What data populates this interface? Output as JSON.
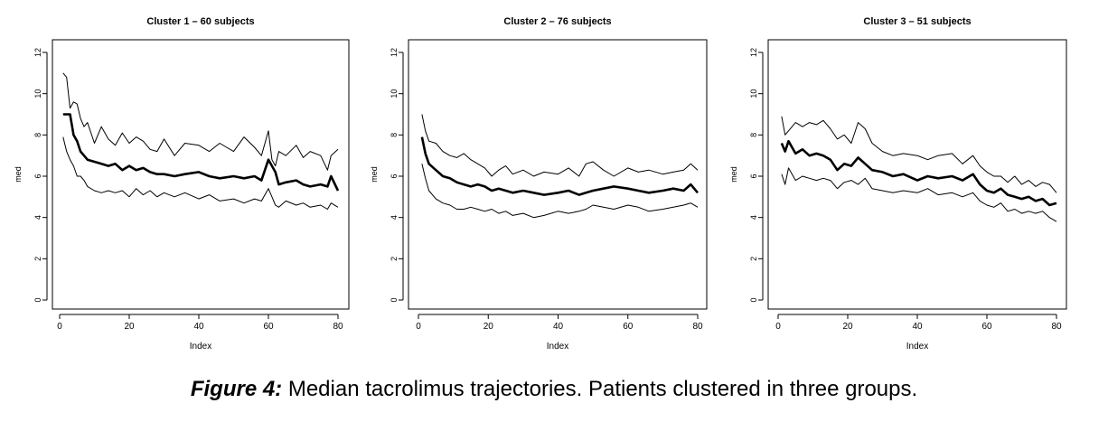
{
  "caption": {
    "label": "Figure 4:",
    "text": " Median tacrolimus trajectories. Patients clustered in three groups."
  },
  "colors": {
    "lines": "#000000",
    "background": "#ffffff"
  },
  "chart_data": [
    {
      "type": "line",
      "title": "Cluster 1 – 60 subjects",
      "xlabel": "Index",
      "ylabel": "med",
      "xlim": [
        0,
        80
      ],
      "ylim": [
        0,
        12
      ],
      "xticks": [
        0,
        20,
        40,
        60,
        80
      ],
      "yticks": [
        0,
        2,
        4,
        6,
        8,
        10,
        12
      ],
      "grid": false,
      "legend": "none",
      "series": [
        {
          "role": "upper",
          "x": [
            1,
            2,
            3,
            4,
            5,
            6,
            7,
            8,
            10,
            12,
            14,
            16,
            18,
            20,
            22,
            24,
            26,
            28,
            30,
            33,
            36,
            40,
            43,
            46,
            50,
            53,
            56,
            58,
            60,
            61,
            62,
            63,
            65,
            68,
            70,
            72,
            75,
            77,
            78,
            80
          ],
          "values": [
            11.0,
            10.8,
            9.3,
            9.6,
            9.5,
            8.8,
            8.4,
            8.6,
            7.6,
            8.4,
            7.8,
            7.5,
            8.1,
            7.6,
            7.9,
            7.7,
            7.3,
            7.2,
            7.8,
            7.0,
            7.6,
            7.5,
            7.2,
            7.6,
            7.2,
            7.9,
            7.4,
            7.0,
            8.2,
            6.8,
            6.5,
            7.2,
            7.0,
            7.5,
            6.9,
            7.2,
            7.0,
            6.3,
            7.0,
            7.3
          ]
        },
        {
          "role": "median",
          "x": [
            1,
            2,
            3,
            4,
            5,
            6,
            7,
            8,
            10,
            12,
            14,
            16,
            18,
            20,
            22,
            24,
            26,
            28,
            30,
            33,
            36,
            40,
            43,
            46,
            50,
            53,
            56,
            58,
            60,
            61,
            62,
            63,
            65,
            68,
            70,
            72,
            75,
            77,
            78,
            80
          ],
          "values": [
            9.0,
            9.0,
            9.0,
            8.0,
            7.7,
            7.2,
            7.0,
            6.8,
            6.7,
            6.6,
            6.5,
            6.6,
            6.3,
            6.5,
            6.3,
            6.4,
            6.2,
            6.1,
            6.1,
            6.0,
            6.1,
            6.2,
            6.0,
            5.9,
            6.0,
            5.9,
            6.0,
            5.8,
            6.8,
            6.5,
            6.2,
            5.6,
            5.7,
            5.8,
            5.6,
            5.5,
            5.6,
            5.5,
            6.0,
            5.3
          ]
        },
        {
          "role": "lower",
          "x": [
            1,
            2,
            3,
            4,
            5,
            6,
            7,
            8,
            10,
            12,
            14,
            16,
            18,
            20,
            22,
            24,
            26,
            28,
            30,
            33,
            36,
            40,
            43,
            46,
            50,
            53,
            56,
            58,
            60,
            61,
            62,
            63,
            65,
            68,
            70,
            72,
            75,
            77,
            78,
            80
          ],
          "values": [
            7.9,
            7.2,
            6.8,
            6.5,
            6.0,
            6.0,
            5.8,
            5.5,
            5.3,
            5.2,
            5.3,
            5.2,
            5.3,
            5.0,
            5.4,
            5.1,
            5.3,
            5.0,
            5.2,
            5.0,
            5.2,
            4.9,
            5.1,
            4.8,
            4.9,
            4.7,
            4.9,
            4.8,
            5.4,
            5.0,
            4.6,
            4.5,
            4.8,
            4.6,
            4.7,
            4.5,
            4.6,
            4.4,
            4.7,
            4.5
          ]
        }
      ]
    },
    {
      "type": "line",
      "title": "Cluster 2 – 76 subjects",
      "xlabel": "Index",
      "ylabel": "med",
      "xlim": [
        0,
        80
      ],
      "ylim": [
        0,
        12
      ],
      "xticks": [
        0,
        20,
        40,
        60,
        80
      ],
      "yticks": [
        0,
        2,
        4,
        6,
        8,
        10,
        12
      ],
      "grid": false,
      "legend": "none",
      "series": [
        {
          "role": "upper",
          "x": [
            1,
            2,
            3,
            5,
            7,
            9,
            11,
            13,
            15,
            17,
            19,
            21,
            23,
            25,
            27,
            30,
            33,
            36,
            40,
            43,
            46,
            48,
            50,
            53,
            56,
            60,
            63,
            66,
            70,
            73,
            76,
            78,
            80
          ],
          "values": [
            9.0,
            8.2,
            7.7,
            7.6,
            7.2,
            7.0,
            6.9,
            7.1,
            6.8,
            6.6,
            6.4,
            6.0,
            6.3,
            6.5,
            6.1,
            6.3,
            6.0,
            6.2,
            6.1,
            6.4,
            6.0,
            6.6,
            6.7,
            6.3,
            6.0,
            6.4,
            6.2,
            6.3,
            6.1,
            6.2,
            6.3,
            6.6,
            6.3
          ]
        },
        {
          "role": "median",
          "x": [
            1,
            2,
            3,
            5,
            7,
            9,
            11,
            13,
            15,
            17,
            19,
            21,
            23,
            25,
            27,
            30,
            33,
            36,
            40,
            43,
            46,
            48,
            50,
            53,
            56,
            60,
            63,
            66,
            70,
            73,
            76,
            78,
            80
          ],
          "values": [
            7.9,
            7.1,
            6.6,
            6.3,
            6.0,
            5.9,
            5.7,
            5.6,
            5.5,
            5.6,
            5.5,
            5.3,
            5.4,
            5.3,
            5.2,
            5.3,
            5.2,
            5.1,
            5.2,
            5.3,
            5.1,
            5.2,
            5.3,
            5.4,
            5.5,
            5.4,
            5.3,
            5.2,
            5.3,
            5.4,
            5.3,
            5.6,
            5.2
          ]
        },
        {
          "role": "lower",
          "x": [
            1,
            2,
            3,
            5,
            7,
            9,
            11,
            13,
            15,
            17,
            19,
            21,
            23,
            25,
            27,
            30,
            33,
            36,
            40,
            43,
            46,
            48,
            50,
            53,
            56,
            60,
            63,
            66,
            70,
            73,
            76,
            78,
            80
          ],
          "values": [
            6.6,
            5.9,
            5.3,
            4.9,
            4.7,
            4.6,
            4.4,
            4.4,
            4.5,
            4.4,
            4.3,
            4.4,
            4.2,
            4.3,
            4.1,
            4.2,
            4.0,
            4.1,
            4.3,
            4.2,
            4.3,
            4.4,
            4.6,
            4.5,
            4.4,
            4.6,
            4.5,
            4.3,
            4.4,
            4.5,
            4.6,
            4.7,
            4.5
          ]
        }
      ]
    },
    {
      "type": "line",
      "title": "Cluster 3 – 51 subjects",
      "xlabel": "Index",
      "ylabel": "med",
      "xlim": [
        0,
        80
      ],
      "ylim": [
        0,
        12
      ],
      "xticks": [
        0,
        20,
        40,
        60,
        80
      ],
      "yticks": [
        0,
        2,
        4,
        6,
        8,
        10,
        12
      ],
      "grid": false,
      "legend": "none",
      "series": [
        {
          "role": "upper",
          "x": [
            1,
            2,
            3,
            5,
            7,
            9,
            11,
            13,
            15,
            17,
            19,
            21,
            23,
            25,
            27,
            30,
            33,
            36,
            40,
            43,
            46,
            50,
            53,
            56,
            58,
            60,
            62,
            64,
            66,
            68,
            70,
            72,
            74,
            76,
            78,
            80
          ],
          "values": [
            8.9,
            8.0,
            8.2,
            8.6,
            8.4,
            8.6,
            8.5,
            8.7,
            8.3,
            7.8,
            8.0,
            7.6,
            8.6,
            8.3,
            7.6,
            7.2,
            7.0,
            7.1,
            7.0,
            6.8,
            7.0,
            7.1,
            6.6,
            7.0,
            6.5,
            6.2,
            6.0,
            6.0,
            5.7,
            6.0,
            5.6,
            5.8,
            5.5,
            5.7,
            5.6,
            5.2
          ]
        },
        {
          "role": "median",
          "x": [
            1,
            2,
            3,
            5,
            7,
            9,
            11,
            13,
            15,
            17,
            19,
            21,
            23,
            25,
            27,
            30,
            33,
            36,
            40,
            43,
            46,
            50,
            53,
            56,
            58,
            60,
            62,
            64,
            66,
            68,
            70,
            72,
            74,
            76,
            78,
            80
          ],
          "values": [
            7.6,
            7.2,
            7.7,
            7.1,
            7.3,
            7.0,
            7.1,
            7.0,
            6.8,
            6.3,
            6.6,
            6.5,
            6.9,
            6.6,
            6.3,
            6.2,
            6.0,
            6.1,
            5.8,
            6.0,
            5.9,
            6.0,
            5.8,
            6.1,
            5.6,
            5.3,
            5.2,
            5.4,
            5.1,
            5.0,
            4.9,
            5.0,
            4.8,
            4.9,
            4.6,
            4.7
          ]
        },
        {
          "role": "lower",
          "x": [
            1,
            2,
            3,
            5,
            7,
            9,
            11,
            13,
            15,
            17,
            19,
            21,
            23,
            25,
            27,
            30,
            33,
            36,
            40,
            43,
            46,
            50,
            53,
            56,
            58,
            60,
            62,
            64,
            66,
            68,
            70,
            72,
            74,
            76,
            78,
            80
          ],
          "values": [
            6.1,
            5.6,
            6.4,
            5.8,
            6.0,
            5.9,
            5.8,
            5.9,
            5.8,
            5.4,
            5.7,
            5.8,
            5.6,
            5.9,
            5.4,
            5.3,
            5.2,
            5.3,
            5.2,
            5.4,
            5.1,
            5.2,
            5.0,
            5.2,
            4.8,
            4.6,
            4.5,
            4.7,
            4.3,
            4.4,
            4.2,
            4.3,
            4.2,
            4.3,
            4.0,
            3.8
          ]
        }
      ]
    }
  ]
}
